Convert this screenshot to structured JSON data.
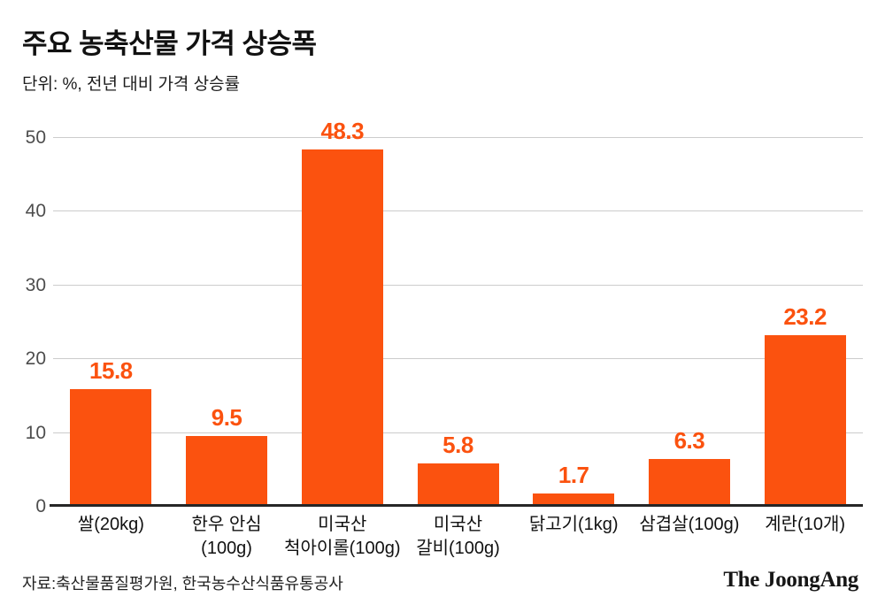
{
  "header": {
    "title": "주요 농축산물 가격 상승폭",
    "subtitle": "단위: %, 전년 대비 가격 상승률"
  },
  "chart_data": {
    "type": "bar",
    "title": "주요 농축산물 가격 상승폭",
    "subtitle": "단위: %, 전년 대비 가격 상승률",
    "categories": [
      "쌀(20kg)",
      "한우 안심\n(100g)",
      "미국산\n척아이롤(100g)",
      "미국산\n갈비(100g)",
      "닭고기(1kg)",
      "삼겹살(100g)",
      "계란(10개)"
    ],
    "values": [
      15.8,
      9.5,
      48.3,
      5.8,
      1.7,
      6.3,
      23.2
    ],
    "xlabel": "",
    "ylabel": "%",
    "ylim": [
      0,
      50
    ],
    "yticks": [
      0,
      10,
      20,
      30,
      40,
      50
    ],
    "grid": true,
    "legend": "none",
    "bar_color": "#FB520F",
    "value_label_color": "#FB520F",
    "gridline_color": "#cccccc",
    "axis_color": "#262626"
  },
  "footer": {
    "source": "자료:축산물품질평가원, 한국농수산식품유통공사",
    "logo": "The JoongAng"
  }
}
